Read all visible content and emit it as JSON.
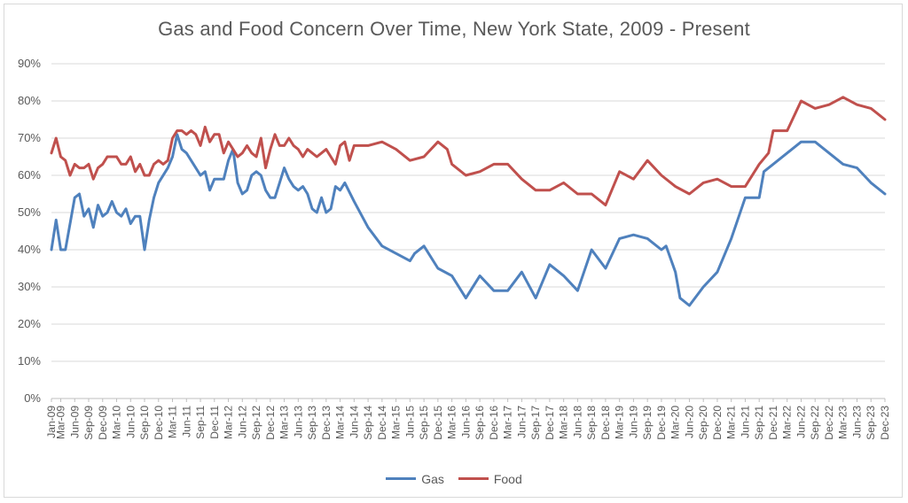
{
  "chart_data": {
    "type": "line",
    "title": "Gas and Food Concern Over Time, New York State, 2009 - Present",
    "xlabel": "",
    "ylabel": "",
    "ylim": [
      0,
      90
    ],
    "y_ticks": [
      "0%",
      "10%",
      "20%",
      "30%",
      "40%",
      "50%",
      "60%",
      "70%",
      "80%",
      "90%"
    ],
    "y_tick_values": [
      0,
      10,
      20,
      30,
      40,
      50,
      60,
      70,
      80,
      90
    ],
    "x_tick_labels": [
      "Jan-09",
      "Mar-09",
      "Jun-09",
      "Sep-09",
      "Dec-09",
      "Mar-10",
      "Jun-10",
      "Sep-10",
      "Dec-10",
      "Mar-11",
      "Jun-11",
      "Sep-11",
      "Dec-11",
      "Mar-12",
      "Jun-12",
      "Sep-12",
      "Dec-12",
      "Mar-13",
      "Jun-13",
      "Sep-13",
      "Dec-13",
      "Mar-14",
      "Jun-14",
      "Sep-14",
      "Dec-14",
      "Mar-15",
      "Jun-15",
      "Sep-15",
      "Dec-15",
      "Mar-16",
      "Jun-16",
      "Sep-16",
      "Dec-16",
      "Mar-17",
      "Jun-17",
      "Sep-17",
      "Dec-17",
      "Mar-18",
      "Jun-18",
      "Sep-18",
      "Dec-18",
      "Mar-19",
      "Jun-19",
      "Sep-19",
      "Dec-19",
      "Mar-20",
      "Jun-20",
      "Sep-20",
      "Dec-20",
      "Mar-21",
      "Jun-21",
      "Sep-21",
      "Dec-21",
      "Mar-22",
      "Jun-22",
      "Sep-22",
      "Dec-22",
      "Mar-23",
      "Jun-23",
      "Sep-23",
      "Dec-23"
    ],
    "grid": true,
    "legend_position": "bottom",
    "series": [
      {
        "name": "Gas",
        "color": "#4f81bd",
        "points": [
          [
            "Jan-09",
            40
          ],
          [
            "Feb-09",
            48
          ],
          [
            "Mar-09",
            40
          ],
          [
            "Apr-09",
            40
          ],
          [
            "May-09",
            47
          ],
          [
            "Jun-09",
            54
          ],
          [
            "Jul-09",
            55
          ],
          [
            "Aug-09",
            49
          ],
          [
            "Sep-09",
            51
          ],
          [
            "Oct-09",
            46
          ],
          [
            "Nov-09",
            52
          ],
          [
            "Dec-09",
            49
          ],
          [
            "Jan-10",
            50
          ],
          [
            "Feb-10",
            53
          ],
          [
            "Mar-10",
            50
          ],
          [
            "Apr-10",
            49
          ],
          [
            "May-10",
            51
          ],
          [
            "Jun-10",
            47
          ],
          [
            "Jul-10",
            49
          ],
          [
            "Aug-10",
            49
          ],
          [
            "Sep-10",
            40
          ],
          [
            "Oct-10",
            48
          ],
          [
            "Nov-10",
            54
          ],
          [
            "Dec-10",
            58
          ],
          [
            "Feb-11",
            62
          ],
          [
            "Mar-11",
            65
          ],
          [
            "Apr-11",
            71
          ],
          [
            "May-11",
            67
          ],
          [
            "Jun-11",
            66
          ],
          [
            "Jul-11",
            64
          ],
          [
            "Aug-11",
            62
          ],
          [
            "Sep-11",
            60
          ],
          [
            "Oct-11",
            61
          ],
          [
            "Nov-11",
            56
          ],
          [
            "Dec-11",
            59
          ],
          [
            "Jan-12",
            59
          ],
          [
            "Feb-12",
            59
          ],
          [
            "Mar-12",
            64
          ],
          [
            "Apr-12",
            67
          ],
          [
            "May-12",
            58
          ],
          [
            "Jun-12",
            55
          ],
          [
            "Jul-12",
            56
          ],
          [
            "Aug-12",
            60
          ],
          [
            "Sep-12",
            61
          ],
          [
            "Oct-12",
            60
          ],
          [
            "Nov-12",
            56
          ],
          [
            "Dec-12",
            54
          ],
          [
            "Jan-13",
            54
          ],
          [
            "Feb-13",
            58
          ],
          [
            "Mar-13",
            62
          ],
          [
            "Apr-13",
            59
          ],
          [
            "May-13",
            57
          ],
          [
            "Jun-13",
            56
          ],
          [
            "Jul-13",
            57
          ],
          [
            "Aug-13",
            55
          ],
          [
            "Sep-13",
            51
          ],
          [
            "Oct-13",
            50
          ],
          [
            "Nov-13",
            54
          ],
          [
            "Dec-13",
            50
          ],
          [
            "Jan-14",
            51
          ],
          [
            "Feb-14",
            57
          ],
          [
            "Mar-14",
            56
          ],
          [
            "Apr-14",
            58
          ],
          [
            "Jun-14",
            53
          ],
          [
            "Sep-14",
            46
          ],
          [
            "Dec-14",
            41
          ],
          [
            "Mar-15",
            39
          ],
          [
            "Jun-15",
            37
          ],
          [
            "Jul-15",
            39
          ],
          [
            "Sep-15",
            41
          ],
          [
            "Dec-15",
            35
          ],
          [
            "Mar-16",
            33
          ],
          [
            "Jun-16",
            27
          ],
          [
            "Sep-16",
            33
          ],
          [
            "Dec-16",
            29
          ],
          [
            "Mar-17",
            29
          ],
          [
            "Jun-17",
            34
          ],
          [
            "Sep-17",
            27
          ],
          [
            "Dec-17",
            36
          ],
          [
            "Mar-18",
            33
          ],
          [
            "Jun-18",
            29
          ],
          [
            "Sep-18",
            40
          ],
          [
            "Dec-18",
            35
          ],
          [
            "Mar-19",
            43
          ],
          [
            "Jun-19",
            44
          ],
          [
            "Sep-19",
            43
          ],
          [
            "Dec-19",
            40
          ],
          [
            "Jan-20",
            41
          ],
          [
            "Mar-20",
            34
          ],
          [
            "Apr-20",
            27
          ],
          [
            "Jun-20",
            25
          ],
          [
            "Sep-20",
            30
          ],
          [
            "Dec-20",
            34
          ],
          [
            "Mar-21",
            43
          ],
          [
            "Jun-21",
            54
          ],
          [
            "Sep-21",
            54
          ],
          [
            "Oct-21",
            61
          ],
          [
            "Dec-21",
            63
          ],
          [
            "Mar-22",
            66
          ],
          [
            "Jun-22",
            69
          ],
          [
            "Sep-22",
            69
          ],
          [
            "Dec-22",
            66
          ],
          [
            "Mar-23",
            63
          ],
          [
            "Jun-23",
            62
          ],
          [
            "Sep-23",
            58
          ],
          [
            "Dec-23",
            55
          ]
        ]
      },
      {
        "name": "Food",
        "color": "#c0504d",
        "points": [
          [
            "Jan-09",
            66
          ],
          [
            "Feb-09",
            70
          ],
          [
            "Mar-09",
            65
          ],
          [
            "Apr-09",
            64
          ],
          [
            "May-09",
            60
          ],
          [
            "Jun-09",
            63
          ],
          [
            "Jul-09",
            62
          ],
          [
            "Aug-09",
            62
          ],
          [
            "Sep-09",
            63
          ],
          [
            "Oct-09",
            59
          ],
          [
            "Nov-09",
            62
          ],
          [
            "Dec-09",
            63
          ],
          [
            "Jan-10",
            65
          ],
          [
            "Feb-10",
            65
          ],
          [
            "Mar-10",
            65
          ],
          [
            "Apr-10",
            63
          ],
          [
            "May-10",
            63
          ],
          [
            "Jun-10",
            65
          ],
          [
            "Jul-10",
            61
          ],
          [
            "Aug-10",
            63
          ],
          [
            "Sep-10",
            60
          ],
          [
            "Oct-10",
            60
          ],
          [
            "Nov-10",
            63
          ],
          [
            "Dec-10",
            64
          ],
          [
            "Jan-11",
            63
          ],
          [
            "Feb-11",
            64
          ],
          [
            "Mar-11",
            70
          ],
          [
            "Apr-11",
            72
          ],
          [
            "May-11",
            72
          ],
          [
            "Jun-11",
            71
          ],
          [
            "Jul-11",
            72
          ],
          [
            "Aug-11",
            71
          ],
          [
            "Sep-11",
            68
          ],
          [
            "Oct-11",
            73
          ],
          [
            "Nov-11",
            69
          ],
          [
            "Dec-11",
            71
          ],
          [
            "Jan-12",
            71
          ],
          [
            "Feb-12",
            66
          ],
          [
            "Mar-12",
            69
          ],
          [
            "Apr-12",
            67
          ],
          [
            "May-12",
            65
          ],
          [
            "Jun-12",
            66
          ],
          [
            "Jul-12",
            68
          ],
          [
            "Aug-12",
            66
          ],
          [
            "Sep-12",
            65
          ],
          [
            "Oct-12",
            70
          ],
          [
            "Nov-12",
            62
          ],
          [
            "Dec-12",
            67
          ],
          [
            "Jan-13",
            71
          ],
          [
            "Feb-13",
            68
          ],
          [
            "Mar-13",
            68
          ],
          [
            "Apr-13",
            70
          ],
          [
            "May-13",
            68
          ],
          [
            "Jun-13",
            67
          ],
          [
            "Jul-13",
            65
          ],
          [
            "Aug-13",
            67
          ],
          [
            "Sep-13",
            66
          ],
          [
            "Oct-13",
            65
          ],
          [
            "Nov-13",
            66
          ],
          [
            "Dec-13",
            67
          ],
          [
            "Jan-14",
            65
          ],
          [
            "Feb-14",
            63
          ],
          [
            "Mar-14",
            68
          ],
          [
            "Apr-14",
            69
          ],
          [
            "May-14",
            64
          ],
          [
            "Jun-14",
            68
          ],
          [
            "Sep-14",
            68
          ],
          [
            "Dec-14",
            69
          ],
          [
            "Mar-15",
            67
          ],
          [
            "Jun-15",
            64
          ],
          [
            "Sep-15",
            65
          ],
          [
            "Dec-15",
            69
          ],
          [
            "Feb-16",
            67
          ],
          [
            "Mar-16",
            63
          ],
          [
            "Jun-16",
            60
          ],
          [
            "Sep-16",
            61
          ],
          [
            "Dec-16",
            63
          ],
          [
            "Mar-17",
            63
          ],
          [
            "Jun-17",
            59
          ],
          [
            "Sep-17",
            56
          ],
          [
            "Dec-17",
            56
          ],
          [
            "Mar-18",
            58
          ],
          [
            "Jun-18",
            55
          ],
          [
            "Sep-18",
            55
          ],
          [
            "Dec-18",
            52
          ],
          [
            "Mar-19",
            61
          ],
          [
            "Jun-19",
            59
          ],
          [
            "Sep-19",
            64
          ],
          [
            "Dec-19",
            60
          ],
          [
            "Mar-20",
            57
          ],
          [
            "Jun-20",
            55
          ],
          [
            "Sep-20",
            58
          ],
          [
            "Dec-20",
            59
          ],
          [
            "Mar-21",
            57
          ],
          [
            "Jun-21",
            57
          ],
          [
            "Sep-21",
            63
          ],
          [
            "Nov-21",
            66
          ],
          [
            "Dec-21",
            72
          ],
          [
            "Mar-22",
            72
          ],
          [
            "Jun-22",
            80
          ],
          [
            "Sep-22",
            78
          ],
          [
            "Dec-22",
            79
          ],
          [
            "Mar-23",
            81
          ],
          [
            "Jun-23",
            79
          ],
          [
            "Sep-23",
            78
          ],
          [
            "Dec-23",
            75
          ]
        ]
      }
    ]
  }
}
